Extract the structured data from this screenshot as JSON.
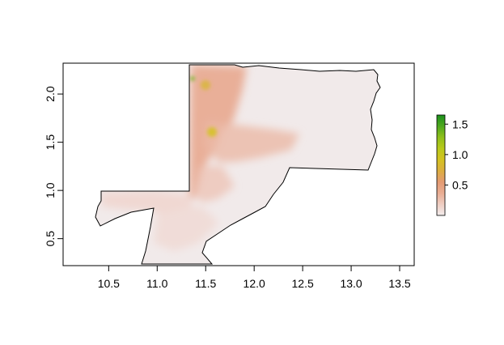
{
  "map": {
    "x_ticks": [
      "10.5",
      "11.0",
      "11.5",
      "12.0",
      "12.5",
      "13.0",
      "13.5"
    ],
    "y_ticks": [
      "0.5",
      "1.0",
      "1.5",
      "2.0"
    ],
    "x_range": [
      10.03,
      13.65
    ],
    "y_range": [
      0.22,
      2.32
    ],
    "x_tick_values": [
      10.5,
      11.0,
      11.5,
      12.0,
      12.5,
      13.0,
      13.5
    ],
    "y_tick_values": [
      0.5,
      1.0,
      1.5,
      2.0
    ],
    "colors": {
      "background_fill": "#f1eaea",
      "low_value": "#f2e6e6",
      "mid_value": "#e9a47e",
      "high_value": "#d4c21a",
      "max_value": "#1e9a1e"
    }
  },
  "legend": {
    "labels": [
      "1.5",
      "1.0",
      "0.5"
    ],
    "values": [
      1.5,
      1.0,
      0.5
    ],
    "range": [
      0.0,
      1.65
    ],
    "gradient": [
      "#f3eded",
      "#eecdc2",
      "#e9ad93",
      "#e49a72",
      "#dcae3f",
      "#d4c220",
      "#b9c91a",
      "#8fbf1a",
      "#4fa91e",
      "#1c8f1c"
    ]
  }
}
